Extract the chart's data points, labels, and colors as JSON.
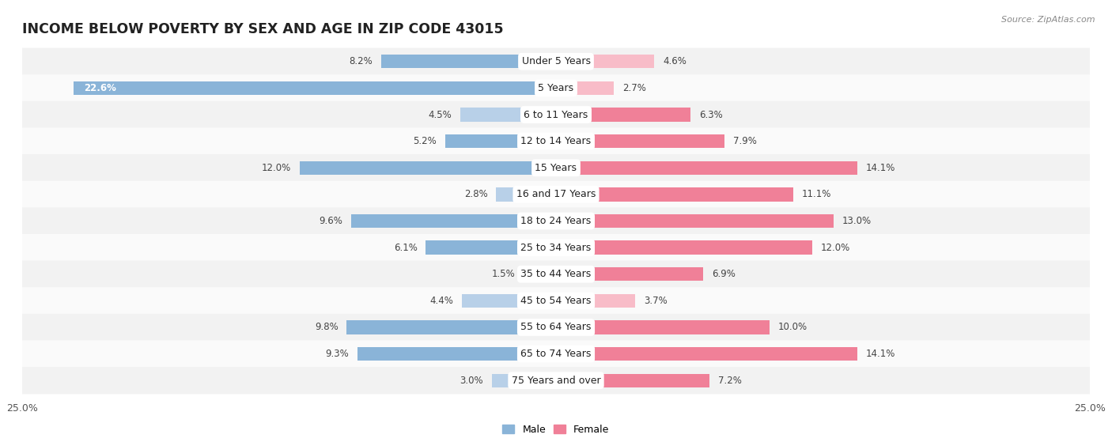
{
  "title": "INCOME BELOW POVERTY BY SEX AND AGE IN ZIP CODE 43015",
  "source": "Source: ZipAtlas.com",
  "categories": [
    "Under 5 Years",
    "5 Years",
    "6 to 11 Years",
    "12 to 14 Years",
    "15 Years",
    "16 and 17 Years",
    "18 to 24 Years",
    "25 to 34 Years",
    "35 to 44 Years",
    "45 to 54 Years",
    "55 to 64 Years",
    "65 to 74 Years",
    "75 Years and over"
  ],
  "male": [
    8.2,
    22.6,
    4.5,
    5.2,
    12.0,
    2.8,
    9.6,
    6.1,
    1.5,
    4.4,
    9.8,
    9.3,
    3.0
  ],
  "female": [
    4.6,
    2.7,
    6.3,
    7.9,
    14.1,
    11.1,
    13.0,
    12.0,
    6.9,
    3.7,
    10.0,
    14.1,
    7.2
  ],
  "male_color": "#8ab4d8",
  "female_color": "#f08098",
  "male_color_light": "#b8d0e8",
  "female_color_light": "#f8bcc8",
  "row_bg_odd": "#eeeeee",
  "row_bg_even": "#f9f9f9",
  "xlim": 25.0,
  "bar_height": 0.52,
  "title_fontsize": 12.5,
  "label_fontsize": 8.5,
  "tick_fontsize": 9,
  "category_fontsize": 9
}
